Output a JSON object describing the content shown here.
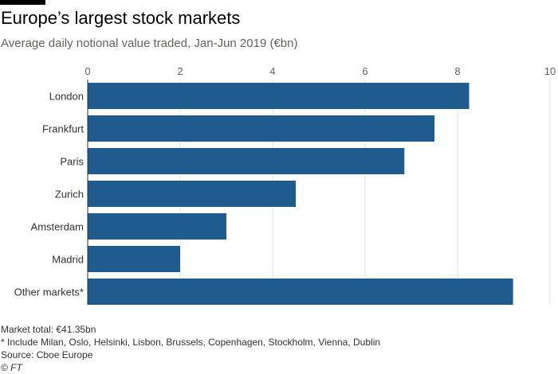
{
  "header": {
    "title": "Europe’s largest stock markets",
    "subtitle": "Average daily notional value traded, Jan-Jun 2019 (€bn)"
  },
  "colors": {
    "bar": "#205b8f",
    "grid": "#e8dede",
    "tick_text": "#66605c",
    "category_text": "#33302e",
    "axis_line": "#33302e"
  },
  "chart_data": {
    "type": "bar",
    "orientation": "horizontal",
    "categories": [
      "London",
      "Frankfurt",
      "Paris",
      "Zurich",
      "Amsterdam",
      "Madrid",
      "Other markets*"
    ],
    "values": [
      8.25,
      7.5,
      6.85,
      4.5,
      3.0,
      2.0,
      9.2
    ],
    "xlim": [
      0,
      10
    ],
    "xticks": [
      "0",
      "2",
      "4",
      "6",
      "8",
      "10"
    ],
    "title": "Europe’s largest stock markets",
    "subtitle": "Average daily notional value traded, Jan-Jun 2019 (€bn)",
    "xlabel": "",
    "ylabel": "",
    "grid": true,
    "xaxis_position": "top"
  },
  "footer": {
    "total": "Market total: €41.35bn",
    "footnote": "* Include Milan, Oslo, Helsinki, Lisbon, Brussels, Copenhagen, Stockholm, Vienna, Dublin",
    "source": "Source: Cboe Europe",
    "credit": "© FT"
  }
}
